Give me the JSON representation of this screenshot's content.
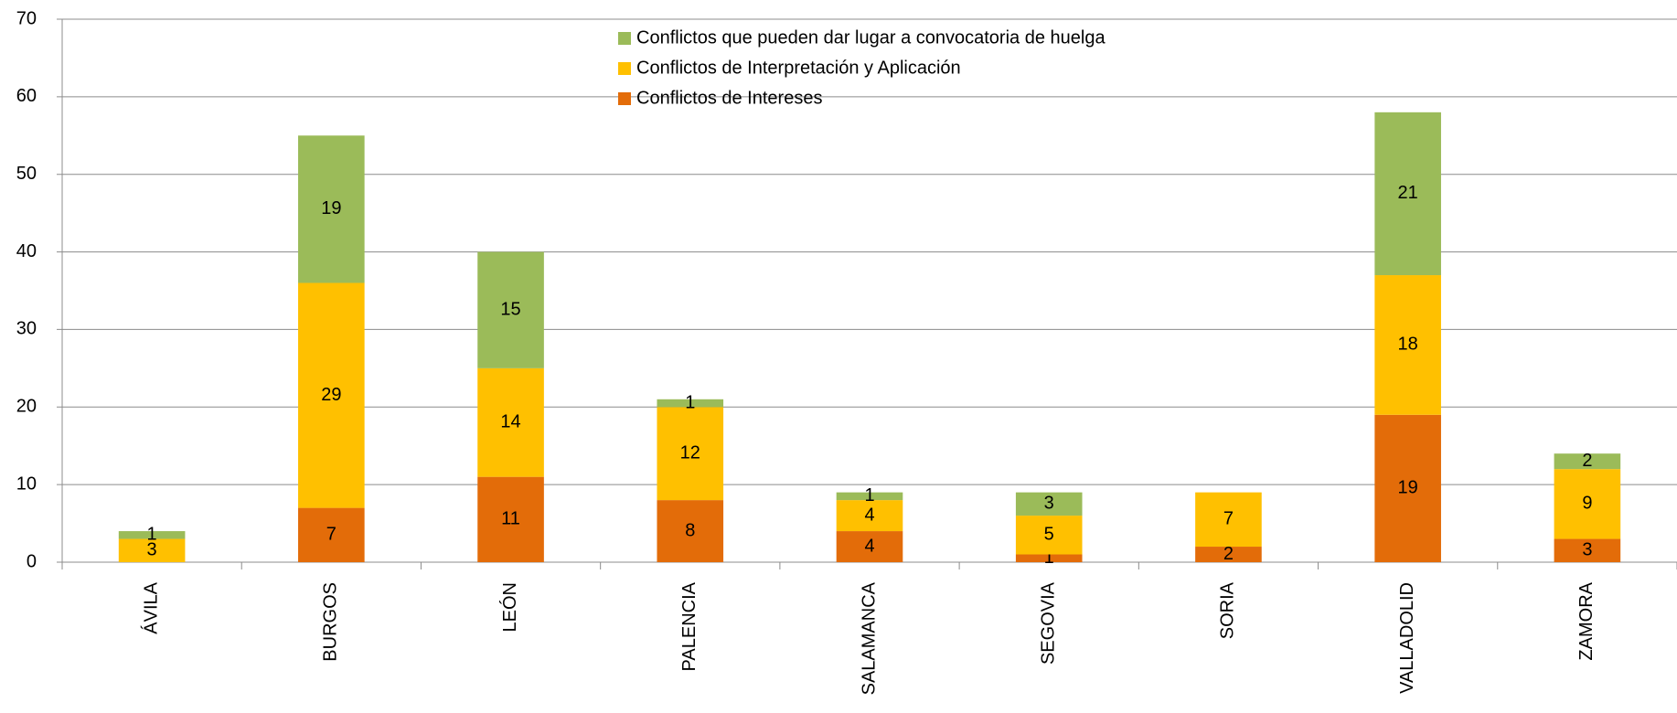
{
  "chart_data": {
    "type": "stacked_bar",
    "categories": [
      "ÁVILA",
      "BURGOS",
      "LEÓN",
      "PALENCIA",
      "SALAMANCA",
      "SEGOVIA",
      "SORIA",
      "VALLADOLID",
      "ZAMORA"
    ],
    "series": [
      {
        "name": "Conflictos de Intereses",
        "color": "#e36c09",
        "values": [
          null,
          7,
          11,
          8,
          4,
          1,
          2,
          19,
          3
        ]
      },
      {
        "name": "Conflictos de Interpretación y Aplicación",
        "color": "#ffc000",
        "values": [
          3,
          29,
          14,
          12,
          4,
          5,
          7,
          18,
          9
        ]
      },
      {
        "name": "Conflictos que pueden dar lugar a convocatoria de huelga",
        "color": "#9bbb59",
        "values": [
          1,
          19,
          15,
          1,
          1,
          3,
          null,
          21,
          2
        ]
      }
    ],
    "ylim": [
      0,
      70
    ],
    "yticks": [
      0,
      10,
      20,
      30,
      40,
      50,
      60,
      70
    ],
    "grid": true
  }
}
